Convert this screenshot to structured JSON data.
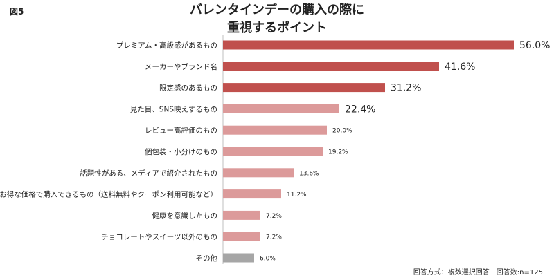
{
  "figure_label": "図5",
  "title_line1": "バレンタインデーの購入の際に",
  "title_line2": "重視するポイント",
  "footnote": "回答方式：複数選択回答　回答数:n=125",
  "colors": {
    "top3": "#c0504d",
    "others": "#dc9a9a",
    "other_category": "#a6a6a6",
    "axis": "#bfbfbf"
  },
  "chart_data": {
    "type": "bar",
    "orientation": "horizontal",
    "categories": [
      "プレミアム・高級感があるもの",
      "メーカーやブランド名",
      "限定感のあるもの",
      "見た目、SNS映えするもの",
      "レビュー高評価のもの",
      "個包装・小分けのもの",
      "話題性がある、メディアで紹介されたもの",
      "お得な価格で購入できるもの（送料無料やクーポン利用可能など）",
      "健康を意識したもの",
      "チョコレートやスイーツ以外のもの",
      "その他"
    ],
    "values": [
      56.0,
      41.6,
      31.2,
      22.4,
      20.0,
      19.2,
      13.6,
      11.2,
      7.2,
      7.2,
      6.0
    ],
    "value_labels": [
      "56.0%",
      "41.6%",
      "31.2%",
      "22.4%",
      "20.0%",
      "19.2%",
      "13.6%",
      "11.2%",
      "7.2%",
      "7.2%",
      "6.0%"
    ],
    "xlim": [
      0,
      56.0
    ]
  }
}
